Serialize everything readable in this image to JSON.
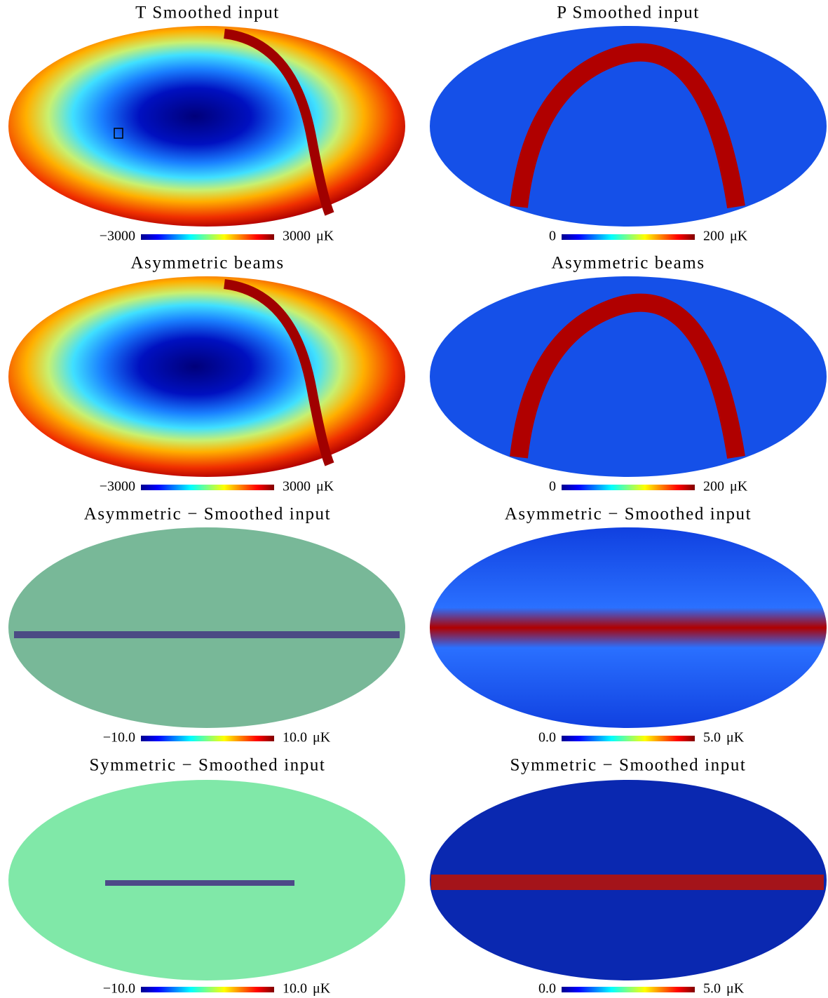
{
  "chart_data": [
    {
      "type": "map",
      "title": "T Smoothed input",
      "colormap": "jet",
      "clim": [
        -3000,
        3000
      ],
      "cticks": [
        {
          "value": -3000,
          "label": "−3000"
        },
        3000
      ],
      "unit": "μK"
    },
    {
      "type": "map",
      "title": "P Smoothed input",
      "colormap": "jet",
      "clim": [
        0,
        200
      ],
      "cticks": [
        0,
        200
      ],
      "unit": "μK"
    },
    {
      "type": "map",
      "title": "Asymmetric beams",
      "colormap": "jet",
      "clim": [
        -3000,
        3000
      ],
      "cticks": [
        {
          "value": -3000,
          "label": "−3000"
        },
        3000
      ],
      "unit": "μK"
    },
    {
      "type": "map",
      "title": "Asymmetric beams",
      "colormap": "jet",
      "clim": [
        0,
        200
      ],
      "cticks": [
        0,
        200
      ],
      "unit": "μK"
    },
    {
      "type": "map",
      "title": "Asymmetric − Smoothed input",
      "colormap": "jet",
      "clim": [
        -10,
        10
      ],
      "cticks": [
        {
          "value": -10,
          "label": "−10.0"
        },
        {
          "value": 10,
          "label": "10.0"
        }
      ],
      "unit": "μK"
    },
    {
      "type": "map",
      "title": "Asymmetric − Smoothed input",
      "colormap": "jet",
      "clim": [
        0,
        5
      ],
      "cticks": [
        {
          "value": 0,
          "label": "0.0"
        },
        {
          "value": 5,
          "label": "5.0"
        }
      ],
      "unit": "μK"
    },
    {
      "type": "map",
      "title": "Symmetric − Smoothed input",
      "colormap": "jet",
      "clim": [
        -10,
        10
      ],
      "cticks": [
        {
          "value": -10,
          "label": "−10.0"
        },
        {
          "value": 10,
          "label": "10.0"
        }
      ],
      "unit": "μK"
    },
    {
      "type": "map",
      "title": "Symmetric − Smoothed input",
      "colormap": "jet",
      "clim": [
        0,
        5
      ],
      "cticks": [
        {
          "value": 0,
          "label": "0.0"
        },
        {
          "value": 5,
          "label": "5.0"
        }
      ],
      "unit": "μK"
    }
  ]
}
